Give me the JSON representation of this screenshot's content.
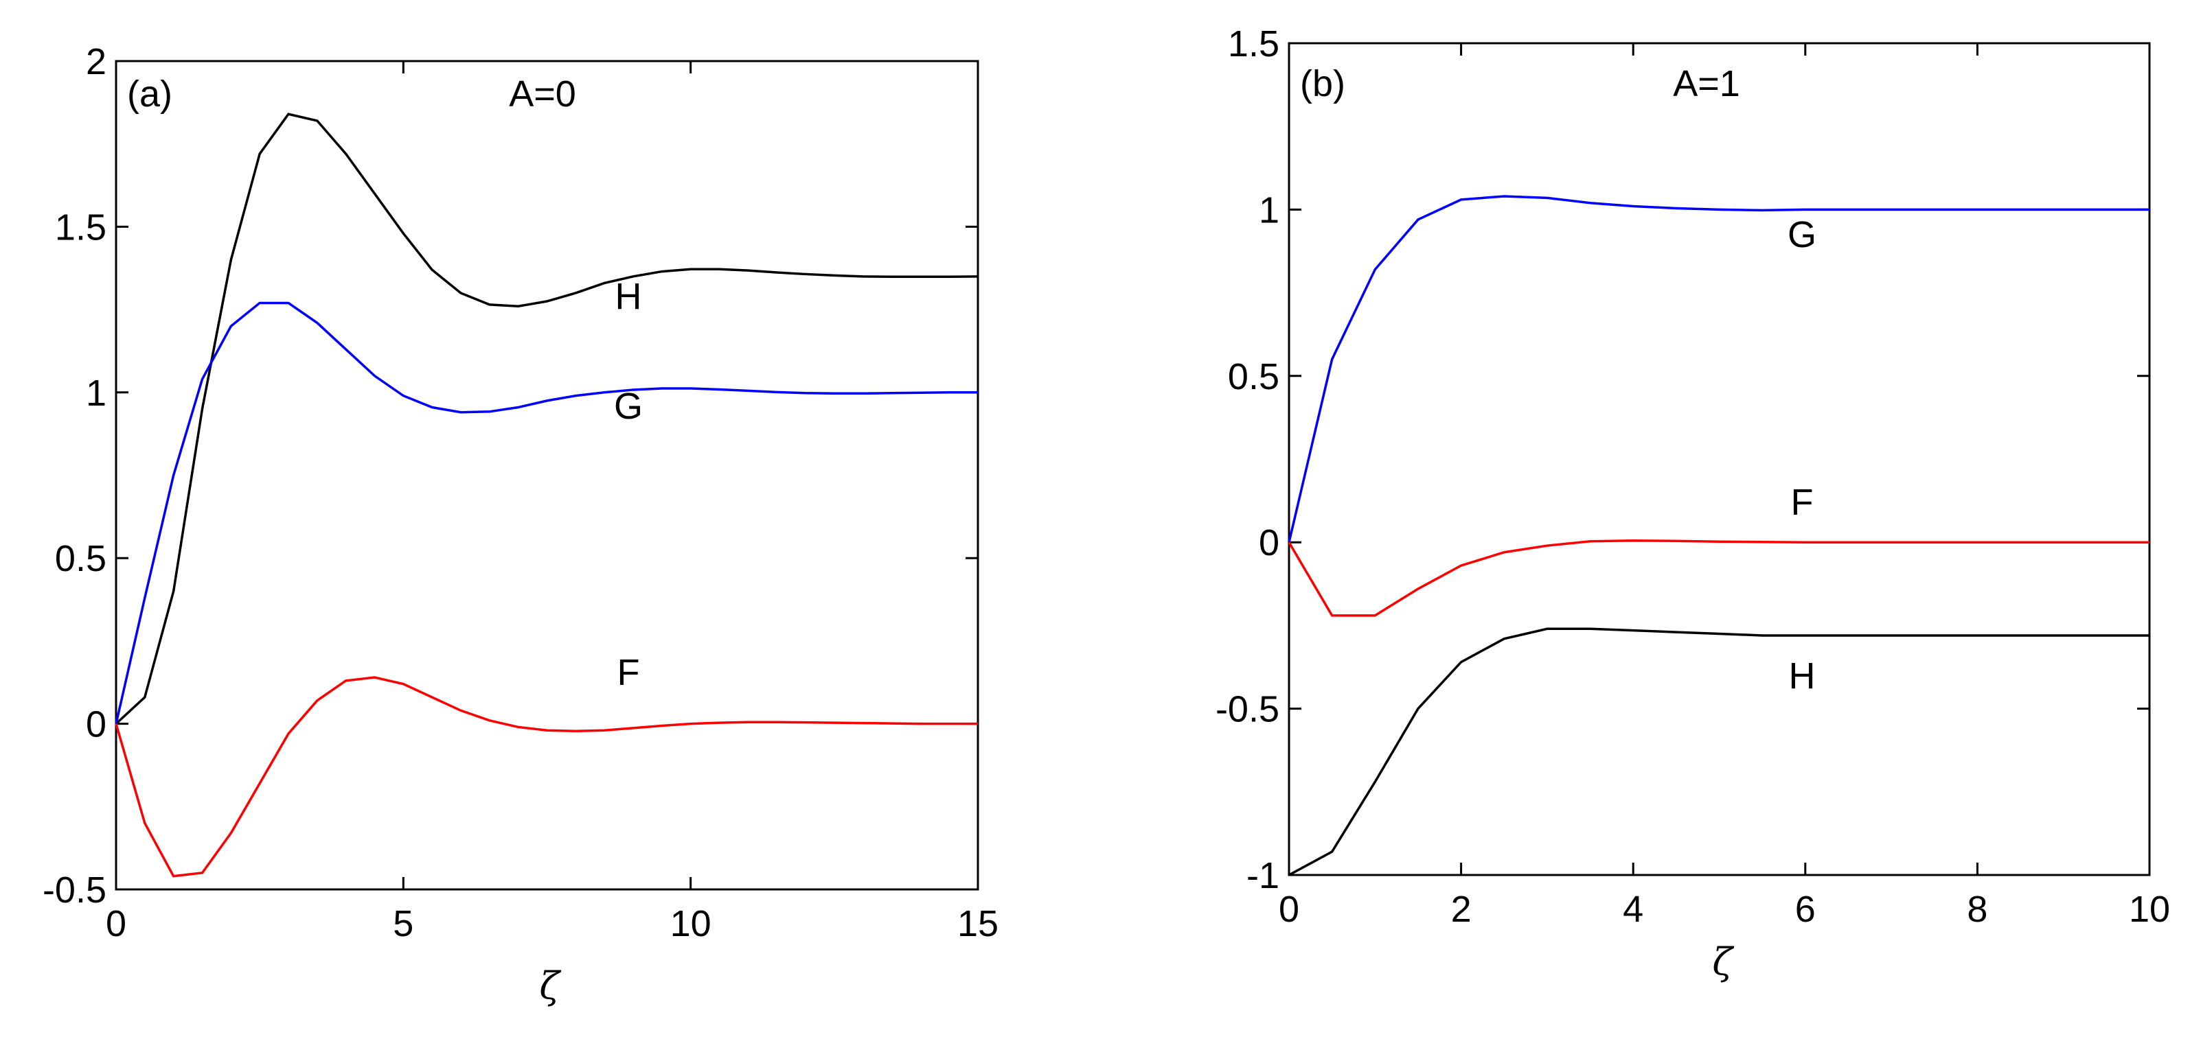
{
  "chart_data": [
    {
      "type": "line",
      "label": "(a)",
      "annotation": "A=0",
      "xlabel": "ζ",
      "x": [
        0,
        0.5,
        1,
        1.5,
        2,
        2.5,
        3,
        3.5,
        4,
        4.5,
        5,
        5.5,
        6,
        6.5,
        7,
        7.5,
        8,
        8.5,
        9,
        9.5,
        10,
        10.5,
        11,
        11.5,
        12,
        12.5,
        13,
        13.5,
        14,
        14.5,
        15
      ],
      "series": [
        {
          "name": "H",
          "color": "#000000",
          "values": [
            0,
            0.08,
            0.4,
            0.95,
            1.4,
            1.72,
            1.84,
            1.82,
            1.72,
            1.6,
            1.48,
            1.37,
            1.3,
            1.265,
            1.26,
            1.275,
            1.3,
            1.33,
            1.35,
            1.365,
            1.372,
            1.372,
            1.368,
            1.362,
            1.357,
            1.353,
            1.35,
            1.349,
            1.349,
            1.349,
            1.35
          ]
        },
        {
          "name": "G",
          "color": "#0000ff",
          "values": [
            0,
            0.38,
            0.75,
            1.04,
            1.2,
            1.27,
            1.27,
            1.21,
            1.13,
            1.05,
            0.99,
            0.955,
            0.94,
            0.942,
            0.955,
            0.975,
            0.99,
            1.0,
            1.008,
            1.012,
            1.012,
            1.009,
            1.005,
            1.001,
            0.998,
            0.997,
            0.997,
            0.998,
            0.999,
            1.0,
            1.0
          ]
        },
        {
          "name": "F",
          "color": "#ff0000",
          "values": [
            0,
            -0.3,
            -0.46,
            -0.45,
            -0.33,
            -0.18,
            -0.03,
            0.07,
            0.13,
            0.14,
            0.12,
            0.08,
            0.04,
            0.01,
            -0.01,
            -0.02,
            -0.022,
            -0.02,
            -0.013,
            -0.006,
            0,
            0.003,
            0.005,
            0.005,
            0.004,
            0.003,
            0.002,
            0.001,
            0,
            0,
            0
          ]
        }
      ],
      "xlim": [
        0,
        15
      ],
      "ylim": [
        -0.5,
        2
      ],
      "xticks": [
        0,
        5,
        10,
        15
      ],
      "yticks": [
        -0.5,
        0,
        0.5,
        1,
        1.5,
        2
      ]
    },
    {
      "type": "line",
      "label": "(b)",
      "annotation": "A=1",
      "xlabel": "ζ",
      "x": [
        0,
        0.5,
        1,
        1.5,
        2,
        2.5,
        3,
        3.5,
        4,
        4.5,
        5,
        5.5,
        6,
        6.5,
        7,
        7.5,
        8,
        8.5,
        9,
        9.5,
        10
      ],
      "series": [
        {
          "name": "G",
          "color": "#0000ff",
          "values": [
            0,
            0.55,
            0.82,
            0.97,
            1.03,
            1.04,
            1.035,
            1.02,
            1.01,
            1.004,
            1.0,
            0.998,
            1,
            1,
            1,
            1,
            1,
            1,
            1,
            1,
            1
          ]
        },
        {
          "name": "F",
          "color": "#ff0000",
          "values": [
            0,
            -0.22,
            -0.22,
            -0.14,
            -0.07,
            -0.03,
            -0.01,
            0.003,
            0.005,
            0.004,
            0.002,
            0.001,
            0,
            0,
            0,
            0,
            0,
            0,
            0,
            0,
            0
          ]
        },
        {
          "name": "H",
          "color": "#000000",
          "values": [
            -1,
            -0.93,
            -0.72,
            -0.5,
            -0.36,
            -0.29,
            -0.26,
            -0.26,
            -0.265,
            -0.27,
            -0.275,
            -0.28,
            -0.28,
            -0.28,
            -0.28,
            -0.28,
            -0.28,
            -0.28,
            -0.28,
            -0.28,
            -0.28
          ]
        }
      ],
      "xlim": [
        0,
        10
      ],
      "ylim": [
        -1,
        1.5
      ],
      "xticks": [
        0,
        2,
        4,
        6,
        8,
        10
      ],
      "yticks": [
        -1,
        -0.5,
        0,
        0.5,
        1,
        1.5
      ]
    }
  ]
}
